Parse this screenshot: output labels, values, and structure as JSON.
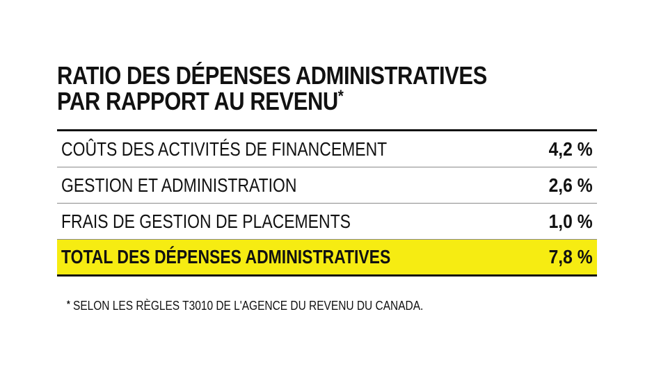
{
  "title": {
    "line1": "RATIO DES DÉPENSES ADMINISTRATIVES",
    "line2": "PAR RAPPORT AU REVENU",
    "asterisk": "*"
  },
  "rows": [
    {
      "label": "COÛTS DES ACTIVITÉS DE FINANCEMENT",
      "value": "4,2 %"
    },
    {
      "label": "GESTION ET ADMINISTRATION",
      "value": "2,6 %"
    },
    {
      "label": "FRAIS DE GESTION DE PLACEMENTS",
      "value": "1,0 %"
    }
  ],
  "total": {
    "label": "TOTAL DES DÉPENSES ADMINISTRATIVES",
    "value": "7,8 %"
  },
  "footnote": {
    "asterisk": "*",
    "text": " SELON LES RÈGLES T3010 DE L'AGENCE DU REVENU DU CANADA."
  },
  "colors": {
    "highlight": "#f6ec12",
    "text": "#111111",
    "divider": "#8a8a8a"
  }
}
